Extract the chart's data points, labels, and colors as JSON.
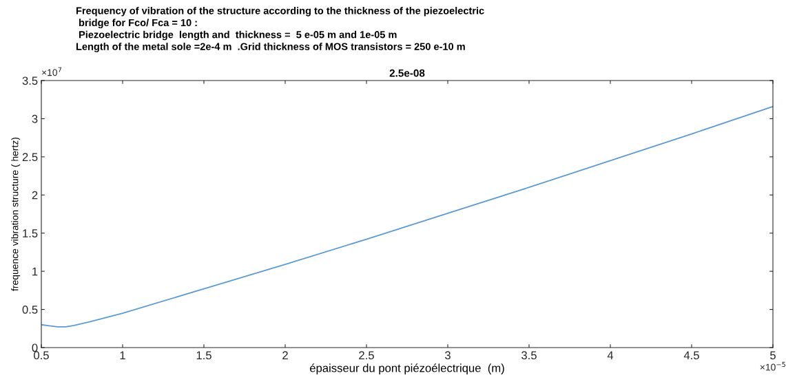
{
  "chart_data": {
    "type": "line",
    "title": "2.5e-08",
    "subtitle": "Frequency of vibration of the structure according to the thickness of the piezoelectric\n bridge for Fco/ Fca = 10 :\n Piezoelectric bridge  length and  thickness =  5 e-05 m and 1e-05 m\nLength of the metal sole =2e-4 m  .Grid thickness of MOS transistors = 250 e-10 m",
    "xlabel": "épaisseur du pont piézoélectrique  (m)",
    "ylabel": "frequence vibration structure ( hertz)",
    "x": [
      0.5,
      0.55,
      0.6,
      0.65,
      0.7,
      0.8,
      1,
      1.5,
      2,
      2.5,
      3,
      3.5,
      4,
      4.5,
      5
    ],
    "series": [
      {
        "color": "#5b9bd5",
        "values": [
          0.3,
          0.285,
          0.272,
          0.272,
          0.29,
          0.34,
          0.45,
          0.77,
          1.09,
          1.42,
          1.76,
          2.1,
          2.45,
          2.8,
          3.16
        ]
      }
    ],
    "xlim": [
      0.5,
      5
    ],
    "xticks": [
      0.5,
      1,
      1.5,
      2,
      2.5,
      3,
      3.5,
      4,
      4.5,
      5
    ],
    "ylim": [
      0,
      3.5
    ],
    "yticks": [
      0,
      0.5,
      1,
      1.5,
      2,
      2.5,
      3,
      3.5
    ],
    "annotations": [
      "×10$^{7}$",
      "×10$^{−5}$"
    ],
    "grid": false,
    "legend": false,
    "marker": "none",
    "line_style": "solid"
  }
}
